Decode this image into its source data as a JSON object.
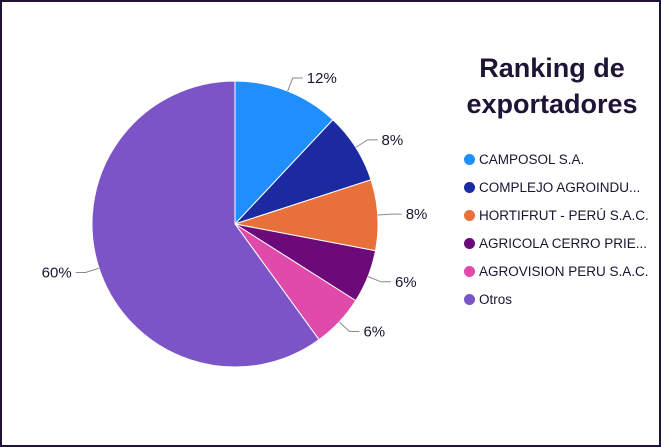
{
  "chart_data": {
    "type": "pie",
    "title": "Ranking de exportadores",
    "legend_position": "right",
    "slices": [
      {
        "label": "CAMPOSOL S.A.",
        "display": "CAMPOSOL S.A.",
        "value": 12,
        "value_label": "12%",
        "color": "#1f8fff"
      },
      {
        "label": "COMPLEJO AGROINDU...",
        "display": "COMPLEJO AGROINDU...",
        "value": 8,
        "value_label": "8%",
        "color": "#1b2aa0"
      },
      {
        "label": "HORTIFRUT - PERÚ S.A.C.",
        "display": "HORTIFRUT - PERÚ S.A.C.",
        "value": 8,
        "value_label": "8%",
        "color": "#e8703a"
      },
      {
        "label": "AGRICOLA CERRO PRIE...",
        "display": "AGRICOLA CERRO PRIE...",
        "value": 6,
        "value_label": "6%",
        "color": "#6b0a78"
      },
      {
        "label": "AGROVISION PERU S.A.C.",
        "display": "AGROVISION PERU S.A.C.",
        "value": 6,
        "value_label": "6%",
        "color": "#e04aaa"
      },
      {
        "label": "Otros",
        "display": "Otros",
        "value": 60,
        "value_label": "60%",
        "color": "#7b55c7"
      }
    ]
  }
}
